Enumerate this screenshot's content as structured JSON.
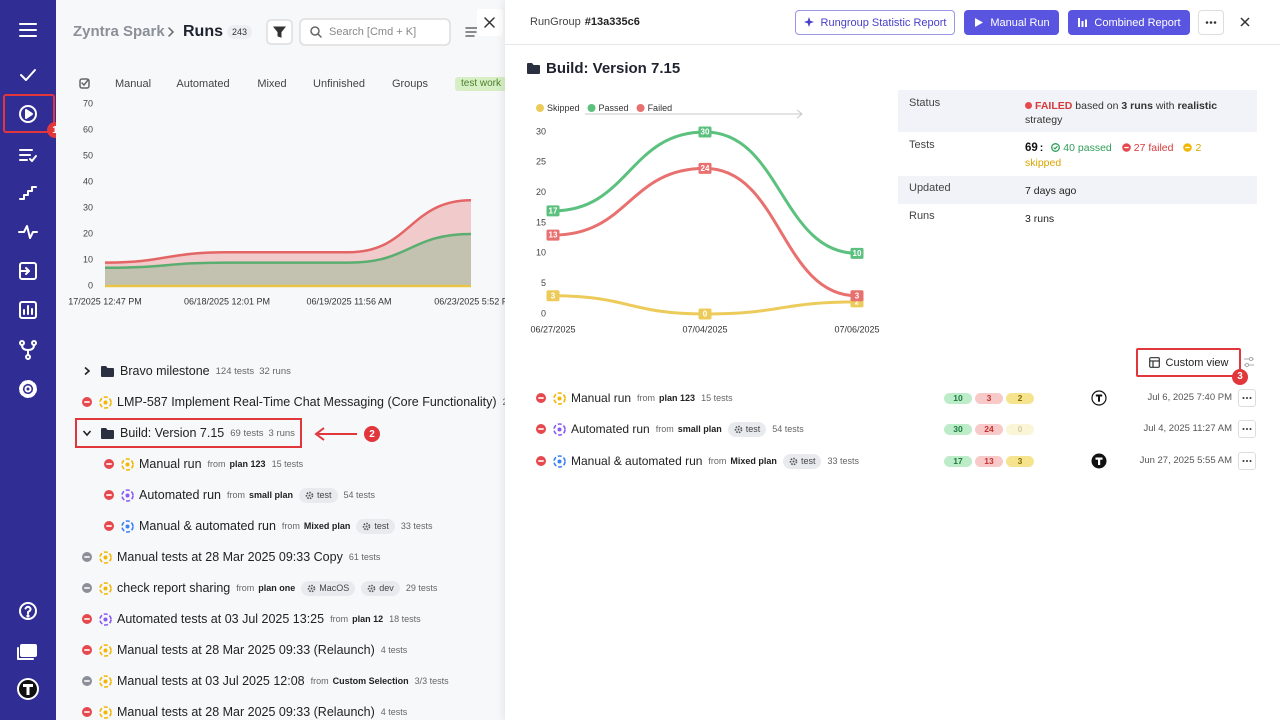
{
  "sidebar": {
    "badge": "1"
  },
  "header": {
    "brand": "Zyntra Spark",
    "title": "Runs",
    "count": 243,
    "search_placeholder": "Search [Cmd + K]"
  },
  "tabs": [
    "Manual",
    "Automated",
    "Mixed",
    "Unfinished",
    "Groups",
    "test work"
  ],
  "chart_data": [
    {
      "type": "area",
      "categories": [
        "17/2025 12:47 PM",
        "06/18/2025 12:01 PM",
        "06/19/2025 11:56 AM",
        "06/23/2025 5:52 P"
      ],
      "series": [
        {
          "color": "#e46565",
          "values": [
            9,
            13,
            13,
            33
          ]
        },
        {
          "color": "#5aae6f",
          "values": [
            7,
            9,
            9,
            20
          ]
        },
        {
          "color": "#e8c547",
          "values": [
            0,
            0,
            0,
            0
          ]
        }
      ],
      "ylim": [
        0,
        70
      ],
      "yticks": [
        0,
        10,
        20,
        30,
        40,
        50,
        60,
        70
      ]
    },
    {
      "type": "line",
      "categories": [
        "06/27/2025",
        "07/04/2025",
        "07/06/2025"
      ],
      "series": [
        {
          "name": "Skipped",
          "color": "#eccb5a",
          "values": [
            3,
            0,
            2
          ]
        },
        {
          "name": "Passed",
          "color": "#5cc17f",
          "values": [
            17,
            30,
            10
          ]
        },
        {
          "name": "Failed",
          "color": "#e8706f",
          "values": [
            13,
            24,
            3
          ]
        }
      ],
      "ylim": [
        0,
        30
      ],
      "yticks": [
        0,
        5,
        10,
        15,
        20,
        25,
        30
      ],
      "legend": "top-left",
      "data_labels": true
    }
  ],
  "run_list": [
    {
      "name": "Bravo milestone",
      "tests": "124 tests",
      "runs": "32 runs",
      "expanded": false
    },
    {
      "name": "LMP-587 Implement Real-Time Chat Messaging (Core Functionality)",
      "tests": "21 t",
      "status_color": "#e5484d",
      "icon_color": "#f2b705"
    },
    {
      "name": "Build: Version 7.15",
      "tests": "69 tests",
      "runs": "3 runs",
      "expanded": true,
      "children": [
        {
          "name": "Manual run",
          "from": "from",
          "plan": "plan 123",
          "tests": "15 tests",
          "status_color": "#e5484d",
          "icon_color": "#f2b705"
        },
        {
          "name": "Automated run",
          "from": "from",
          "plan": "small plan",
          "tags": [
            "test"
          ],
          "tests": "54 tests",
          "status_color": "#e5484d",
          "icon_color": "#8a5cf6"
        },
        {
          "name": "Manual & automated run",
          "from": "from",
          "plan": "Mixed plan",
          "tags": [
            "test"
          ],
          "tests": "33 tests",
          "status_color": "#e5484d",
          "icon_color": "#3b82f6"
        }
      ]
    },
    {
      "name": "Manual tests at 28 Mar 2025 09:33 Copy",
      "tests": "61 tests",
      "status_color": "#8a8f98",
      "icon_color": "#f2b705"
    },
    {
      "name": "check report sharing",
      "from": "from",
      "plan": "plan one",
      "tags": [
        "MacOS",
        "dev"
      ],
      "tests": "29 tests",
      "status_color": "#8a8f98",
      "icon_color": "#f2b705"
    },
    {
      "name": "Automated tests at 03 Jul 2025 13:25",
      "from": "from",
      "plan": "plan 12",
      "tests": "18 tests",
      "status_color": "#e5484d",
      "icon_color": "#8a5cf6"
    },
    {
      "name": "Manual tests at 28 Mar 2025 09:33 (Relaunch)",
      "tests": "4 tests",
      "status_color": "#e5484d",
      "icon_color": "#f2b705"
    },
    {
      "name": "Manual tests at 03 Jul 2025 12:08",
      "from": "from",
      "plan": "Custom Selection",
      "tests": "3/3 tests",
      "status_color": "#8a8f98",
      "icon_color": "#f2b705"
    },
    {
      "name": "Manual tests at 28 Mar 2025 09:33 (Relaunch)",
      "tests": "4 tests",
      "status_color": "#e5484d",
      "icon_color": "#f2b705"
    }
  ],
  "list_annotation": "2",
  "panel": {
    "label": "RunGroup",
    "id": "#13a335c6",
    "buttons": [
      "Rungroup Statistic Report",
      "Manual Run",
      "Combined Report"
    ],
    "title": "Build: Version 7.15",
    "details": {
      "status_label": "Status",
      "status": "FAILED",
      "status_text_1": "based on",
      "status_runs": "3 runs",
      "status_text_2": "with",
      "strategy": "realistic",
      "status_text_3": "strategy",
      "tests_label": "Tests",
      "tests_total": 69,
      "tests_sep": ":",
      "passed": "40 passed",
      "failed": "27 failed",
      "skipped": "2 skipped",
      "updated_label": "Updated",
      "updated": "7 days ago",
      "runs_label": "Runs",
      "runs": "3 runs"
    },
    "custom_view": "Custom view",
    "custom_view_badge": "3",
    "runs": [
      {
        "name": "Manual run",
        "from": "from",
        "plan": "plan 123",
        "tests": "15 tests",
        "passed": 10,
        "failed": 3,
        "skipped": 2,
        "avatar": "outline",
        "date": "Jul 6, 2025 7:40 PM",
        "icon_color": "#f2b705"
      },
      {
        "name": "Automated run",
        "from": "from",
        "plan": "small plan",
        "tags": [
          "test"
        ],
        "tests": "54 tests",
        "passed": 30,
        "failed": 24,
        "skipped": 0,
        "date": "Jul 4, 2025 11:27 AM",
        "icon_color": "#8a5cf6"
      },
      {
        "name": "Manual & automated run",
        "from": "from",
        "plan": "Mixed plan",
        "tags": [
          "test"
        ],
        "tests": "33 tests",
        "passed": 17,
        "failed": 13,
        "skipped": 3,
        "avatar": "solid",
        "date": "Jun 27, 2025 5:55 AM",
        "icon_color": "#3b82f6"
      }
    ]
  }
}
